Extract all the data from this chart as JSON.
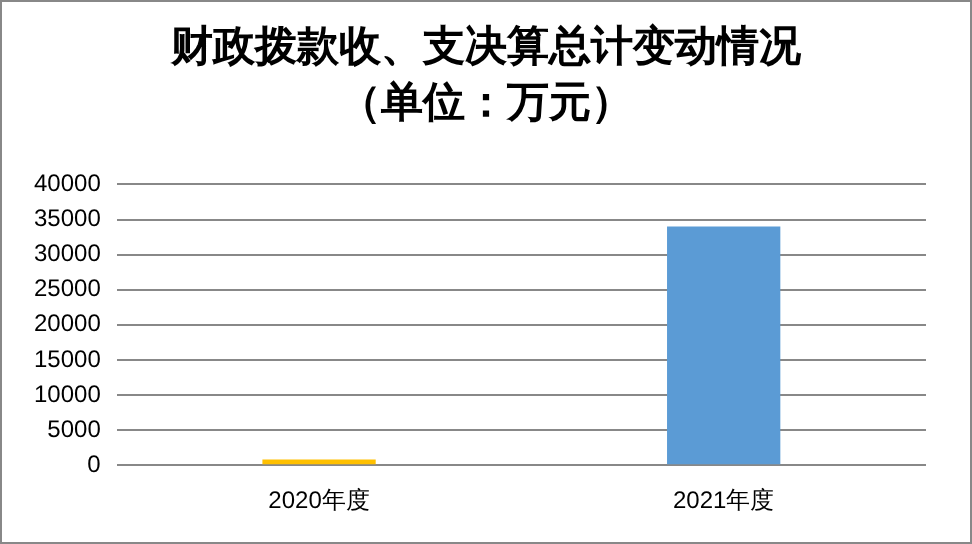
{
  "chart_data": {
    "type": "bar",
    "title": "财政拨款收、支决算总计变动情况",
    "subtitle": "（单位：万元）",
    "categories": [
      "2020年度",
      "2021年度"
    ],
    "values": [
      800,
      34000
    ],
    "colors": [
      "#ffc000",
      "#5b9bd5"
    ],
    "ylim": [
      0,
      40000
    ],
    "yticks": [
      0,
      5000,
      10000,
      15000,
      20000,
      25000,
      30000,
      35000,
      40000
    ],
    "grid": "y",
    "legend": false
  }
}
